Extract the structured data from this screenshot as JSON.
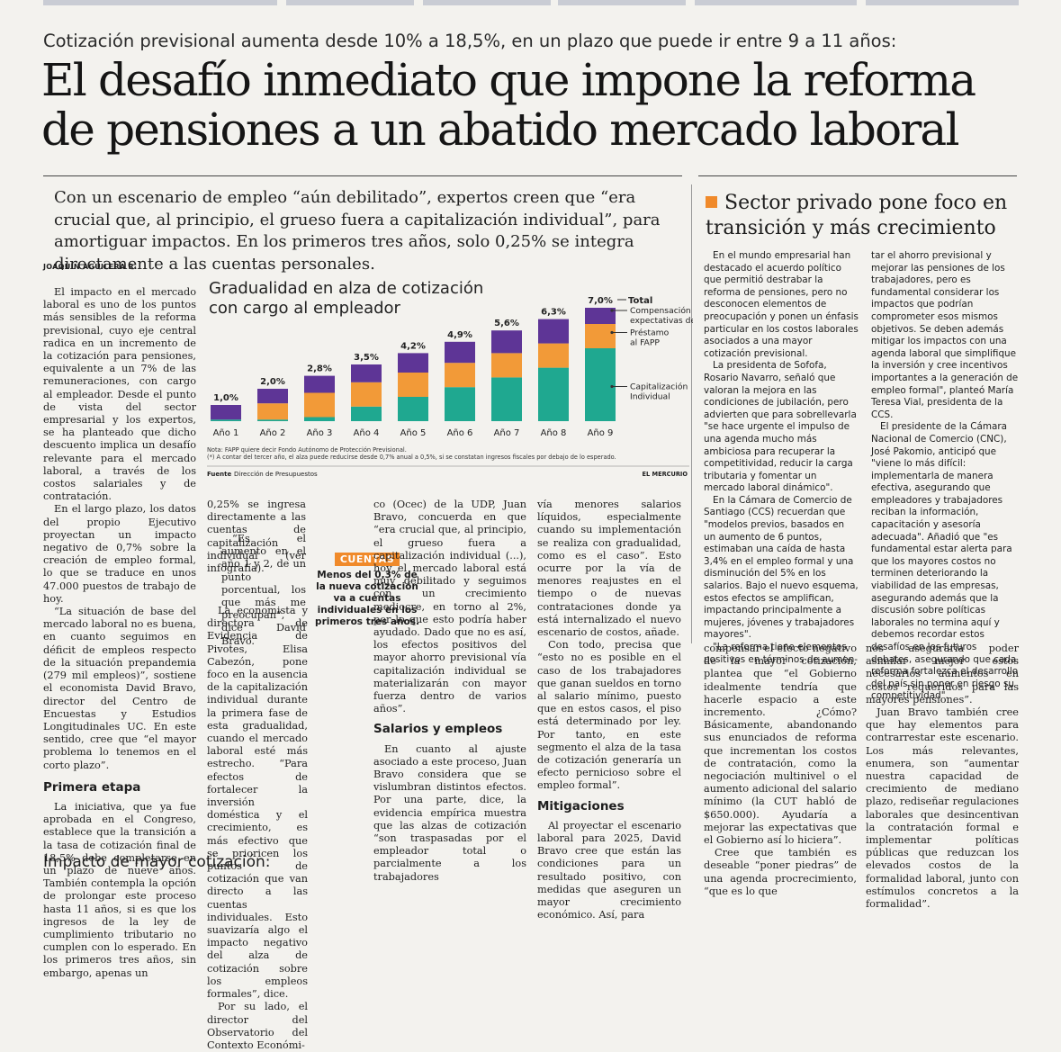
{
  "article": {
    "kicker": "Cotización previsional aumenta desde 10% a 18,5%, en un plazo que puede ir entre 9 a 11 años:",
    "headline_line1": "El desafío inmediato que impone la reforma",
    "headline_line2": "de pensiones a un abatido mercado laboral",
    "deck": "Con un escenario de empleo “aún debilitado”, expertos creen que “era crucial que, al principio, el grueso fuera a capitalización individual”, para amortiguar impactos. En los primeros tres años, solo 0,25% se integra directamente a las cuentas personales.",
    "byline": "JOAQUÍN AGUILERA R.",
    "col1_p1": "El impacto en el mercado laboral es uno de los puntos más sensibles de la reforma previsional, cuyo eje central radica en un incremento de la cotización para pensiones, equivalente a un 7% de las remuneraciones, con cargo al empleador. Desde el punto de vista del sector empresarial y los expertos, se ha planteado que dicho descuento implica un desafío relevante para el mercado laboral, a través de los costos salariales y de contratación.",
    "col1_p2": "En el largo plazo, los datos del propio Ejecutivo proyectan un impacto negativo de 0,7% sobre la creación de empleo formal, lo que se traduce en unos 47.000 puestos de trabajo de hoy.",
    "col1_p3": "“La situación de base del mercado laboral no es buena, en cuanto seguimos en déficit de empleos respecto de la situación prepandemia (279 mil empleos)”, sostiene el economista David Bravo, director del Centro de Encuestas y Estudios Longitudinales UC. En este sentido, cree que “el mayor problema lo tenemos en el corto plazo”.",
    "col1_h": "Primera etapa",
    "col1_p4": "La iniciativa, que ya fue aprobada en el Congreso, establece que la transición a la tasa de cotización final de 18,5% debe completarse en un plazo de nueve años. También contempla la opción de prolongar este proceso hasta 11 años, si es que los ingresos de la ley de cumplimiento tributario no cumplen con lo esperado. En los primeros tres años, sin embargo, apenas un",
    "col2_p1": "0,25% se ingresa directamente a las cuentas de capitalización individual (ver infografía).",
    "col2_p2": "“Es el aumento en el año 1 y 2, de un punto porcentual, los que más me preocupan”, dice David Bravo.",
    "col2_p3": "La economista y directora de Evidencia de Pivotes, Elisa Cabezón, pone foco en la ausencia de la capitalización individual durante la primera fase de esta gradualidad, cuando el mercado laboral esté más estrecho. “Para efectos de fortalecer la inversión doméstica y el crecimiento, es más efectivo que se prioricen los puntos de cotización que van directo a las cuentas individuales. Esto suavizaría algo el impacto negativo del alza de cotización sobre los empleos formales”, dice.",
    "col2_p4": "Por su lado, el director del Observatorio del Contexto Económi-",
    "col3_p1": "co (Ocec) de la UDP, Juan Bravo, concuerda en que “era crucial que, al principio, el grueso fuera a capitalización individual (...), hoy el mercado laboral está muy debilitado y seguimos con un crecimiento mediocre, en torno al 2%, por lo que esto podría haber ayudado. Dado que no es así, los efectos positivos del mayor ahorro previsional vía capitalización individual se materializarán con mayor fuerza dentro de varios años”.",
    "col3_h": "Salarios y empleos",
    "col3_p2": "En cuanto al ajuste asociado a este proceso, Juan Bravo considera que se vislumbran distintos efectos. Por una parte, dice, la evidencia empírica muestra que las alzas de cotización “son traspasadas por el empleador total o parcialmente a los trabajadores",
    "col4_p1": "vía menores salarios líquidos, especialmente cuando su implementación se realiza con gradualidad, como es el caso”. Esto ocurre por la vía de menores reajustes en el tiempo o de nuevas contrataciones donde ya está internalizado el nuevo escenario de costos, añade.",
    "col4_p2": "Con todo, precisa que “esto no es posible en el caso de los trabajadores que ganan sueldos en torno al salario mínimo, puesto que en estos casos, el piso está determinado por ley. Por tanto, en este segmento el alza de la tasa de cotización generaría un efecto pernicioso sobre el empleo formal”.",
    "col4_h": "Mitigaciones",
    "col4_p3": "Al proyectar el escenario laboral para 2025, David Bravo cree que están las condiciones para un resultado positivo, con medidas que aseguren un mayor crecimiento económico. Así, para",
    "col5_p1": "compensar el efecto negativo de la mayor cotización, plantea que “el Gobierno idealmente tendría que hacerle espacio a este incremento. ¿Cómo? Básicamente, abandonando sus enunciados de reforma que incrementan los costos de contratación, como la negociación multinivel o el aumento adicional del salario mínimo (la CUT habló de $650.000). Ayudaría a mejorar las expectativas que el Gobierno así lo hiciera”.",
    "col5_p2": "Cree que también es deseable “poner piedras” de una agenda procrecimiento, “que es lo que",
    "col6_p1": "nos aseguraría poder asimilar mejor estos necesarios aumentos en costos requeridos para las mayores pensiones”.",
    "col6_p2": "Juan Bravo también cree que hay elementos para contrarrestar este escenario. Los más relevantes, enumera, son “aumentar nuestra capacidad de crecimiento de mediano plazo, rediseñar regulaciones laborales que desincentivan la contratación formal e implementar políticas públicas que reduzcan los elevados costos de la formalidad laboral, junto con estímulos concretos a la formalidad”.",
    "bottom_head": "Impacto de mayor cotización:"
  },
  "sidebar": {
    "title_line1": "Sector privado pone foco en",
    "title_line2": "transición y más crecimiento",
    "accent_color": "#f08a2a",
    "c1_p1": "En el mundo empresarial han destacado el acuerdo político que permitió destrabar la reforma de pensiones, pero no desconocen elementos de preocupación y ponen un énfasis particular en los costos laborales asociados a una mayor cotización previsional.",
    "c1_p2": "La presidenta de Sofofa, Rosario Navarro, señaló que valoran la mejora en las condiciones de jubilación, pero advierten que para sobrellevarla \"se hace urgente el impulso de una agenda mucho más ambiciosa para recuperar la competitividad, reducir la carga tributaria y fomentar un mercado laboral dinámico\".",
    "c1_p3": "En la Cámara de Comercio de Santiago (CCS) recuerdan que \"modelos previos, basados en un aumento de 6 puntos, estimaban una caída de hasta 3,4% en el empleo formal y una disminución del 5% en los salarios. Bajo el nuevo esquema, estos efectos se amplifican, impactando principalmente a mujeres, jóvenes y trabajadores mayores\".",
    "c1_p4": "\"La reforma tiene elementos positivos en términos de aumen-",
    "c2_p1": "tar el ahorro previsional y mejorar las pensiones de los trabajadores, pero es fundamental considerar los impactos que podrían comprometer esos mismos objetivos. Se deben además mitigar los impactos con una agenda laboral que simplifique la inversión y cree incentivos importantes a la generación de empleo formal\", planteó María Teresa Vial, presidenta de la CCS.",
    "c2_p2": "El presidente de la Cámara Nacional de Comercio (CNC), José Pakomio, anticipó que \"viene lo más difícil: implementarla de manera efectiva, asegurando que empleadores y trabajadores reciban la información, capacitación y asesoría adecuada\". Añadió que \"es fundamental estar alerta para que los mayores costos no terminen deteriorando la viabilidad de las empresas, asegurando además que la discusión sobre políticas laborales no termina aquí y debemos recordar estos desafíos en los futuros debates, asegurando que cada reforma fortalezca el desarrollo del país sin poner en riesgo su competitividad\"."
  },
  "callout": {
    "tag": "CUENTAS",
    "text": "Menos del 0,3% de la nueva cotización va a cuentas individuales en los primeros tres años."
  },
  "chart_data": {
    "type": "bar",
    "stacked": true,
    "title_line1": "Gradualidad en alza de cotización",
    "title_line2": "con cargo al empleador",
    "categories": [
      "Año 1",
      "Año 2",
      "Año 3",
      "Año 4",
      "Año 5",
      "Año 6",
      "Año 7",
      "Año 8",
      "Año 9"
    ],
    "totals": [
      "1,0%",
      "2,0%",
      "2,8%",
      "3,5%",
      "4,2%",
      "4,9%",
      "5,6%",
      "6,3%",
      "7,0%"
    ],
    "total_label": "Total",
    "series": [
      {
        "name": "Capitalización Individual",
        "color": "#1fa890",
        "values": [
          0.1,
          0.1,
          0.25,
          0.9,
          1.5,
          2.1,
          2.7,
          3.3,
          4.5
        ]
      },
      {
        "name": "Préstamo al FAPP",
        "color": "#f29a38",
        "values": [
          0.0,
          1.0,
          1.5,
          1.5,
          1.5,
          1.5,
          1.5,
          1.5,
          1.5
        ]
      },
      {
        "name": "Compensación por expectativas de vida",
        "color": "#5e3596",
        "values": [
          0.9,
          0.9,
          1.05,
          1.1,
          1.2,
          1.3,
          1.4,
          1.5,
          1.0
        ]
      }
    ],
    "ylim": [
      0,
      7.0
    ],
    "note1": "Nota: FAPP quiere decir Fondo Autónomo de Protección Previsional.",
    "note2": "(*) A contar del tercer año, el alza puede reducirse desde 0,7% anual a 0,5%, si se constatan ingresos fiscales por debajo de lo esperado.",
    "source_label": "Fuente",
    "source": "Dirección de Presupuestos",
    "credit": "EL MERCURIO"
  }
}
